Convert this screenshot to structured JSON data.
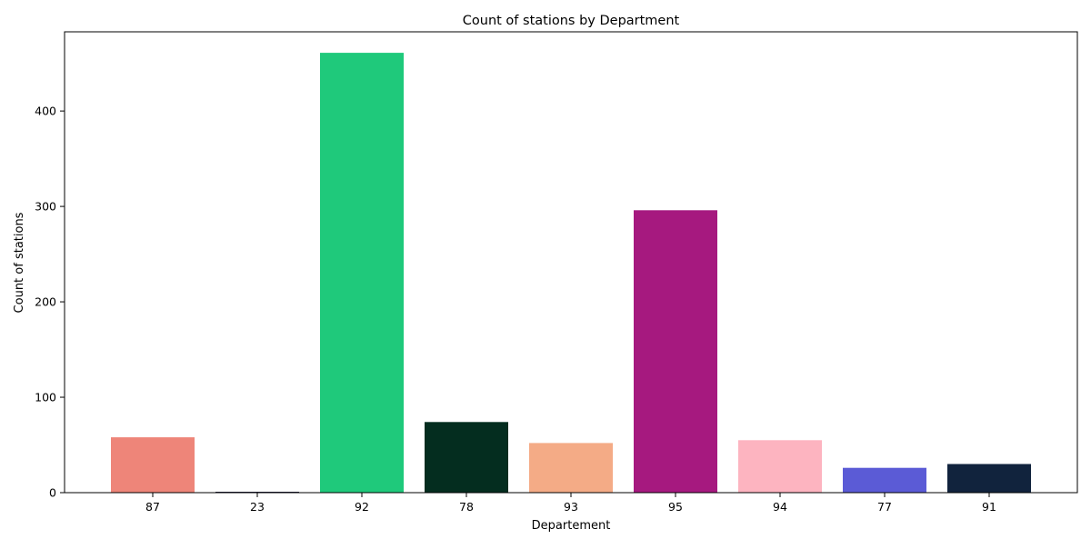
{
  "chart_data": {
    "type": "bar",
    "title": "Count of stations by Department",
    "xlabel": "Departement",
    "ylabel": "Count of stations",
    "categories": [
      "87",
      "23",
      "92",
      "78",
      "93",
      "95",
      "94",
      "77",
      "91"
    ],
    "values": [
      58,
      1,
      461,
      74,
      52,
      296,
      55,
      26,
      30
    ],
    "colors": [
      "#ee8579",
      "#1f1f3d",
      "#1fc97b",
      "#042d1f",
      "#f4ab86",
      "#a6197f",
      "#fdb4c0",
      "#5b5bd6",
      "#11233d"
    ],
    "ylim": [
      0,
      483
    ],
    "yticks": [
      0,
      100,
      200,
      300,
      400
    ],
    "grid": false,
    "legend": "none"
  }
}
